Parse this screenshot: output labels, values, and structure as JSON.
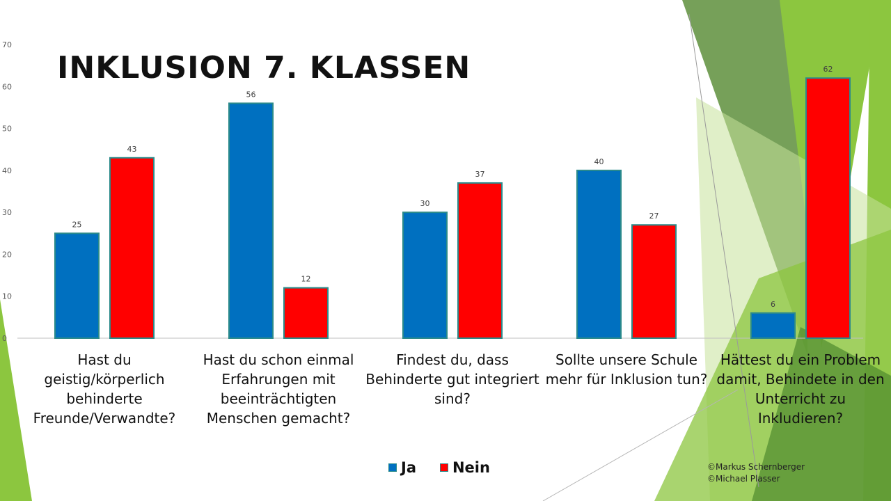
{
  "slide": {
    "title": "INKLUSION 7. KLASSEN",
    "credits": [
      "©Markus Schernberger",
      "©Michael Plasser"
    ],
    "accent_colors": {
      "green_dark": "#5a9a3a",
      "green": "#8cc63f",
      "green_light": "#c6e29a"
    }
  },
  "chart_data": {
    "type": "bar",
    "title": "INKLUSION 7. KLASSEN",
    "xlabel": "",
    "ylabel": "",
    "ylim": [
      0,
      70
    ],
    "yticks": [
      0,
      10,
      20,
      30,
      40,
      50,
      60,
      70
    ],
    "grid": false,
    "legend_position": "bottom",
    "categories": [
      "Hast du geistig/körperlich behinderte Freunde/Verwandte?",
      "Hast du schon einmal Erfahrungen mit beeinträchtigten Menschen gemacht?",
      "Findest du, dass Behinderte gut integriert sind?",
      "Sollte unsere Schule mehr für Inklusion tun?",
      "Hättest du ein Problem damit, Behindete in den Unterricht zu Inkludieren?"
    ],
    "series": [
      {
        "name": "Ja",
        "color": "#0070c0",
        "values": [
          25,
          56,
          30,
          40,
          6
        ]
      },
      {
        "name": "Nein",
        "color": "#ff0000",
        "values": [
          43,
          12,
          37,
          27,
          62
        ]
      }
    ]
  }
}
